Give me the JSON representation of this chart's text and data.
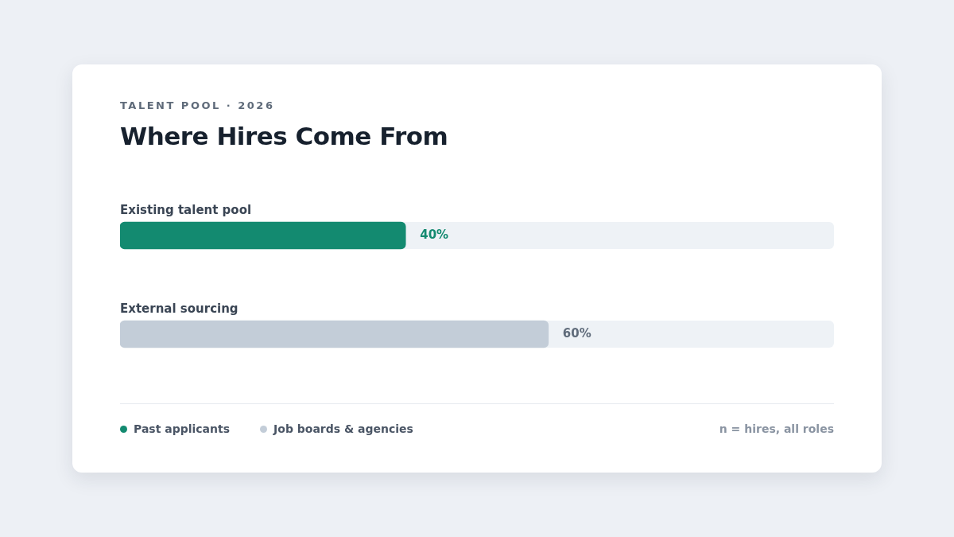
{
  "chart_data": {
    "type": "bar",
    "orientation": "horizontal",
    "stacked": true,
    "subtitle": "TALENT POOL · 2026",
    "title": "Where Hires Come From",
    "categories": [
      "Existing talent pool",
      "External sourcing"
    ],
    "series": [
      {
        "name": "Past applicants",
        "color": "#138a70",
        "values": [
          40,
          null
        ],
        "value_labels": [
          "40%",
          null
        ]
      },
      {
        "name": "Job boards & agencies",
        "color": "#c3cdd8",
        "values": [
          null,
          60
        ],
        "value_labels": [
          null,
          "60%"
        ]
      }
    ],
    "xlim": [
      0,
      100
    ],
    "tick_labels": "y",
    "legend": "bottom left",
    "annotations": [
      "n = hires, all roles"
    ]
  }
}
